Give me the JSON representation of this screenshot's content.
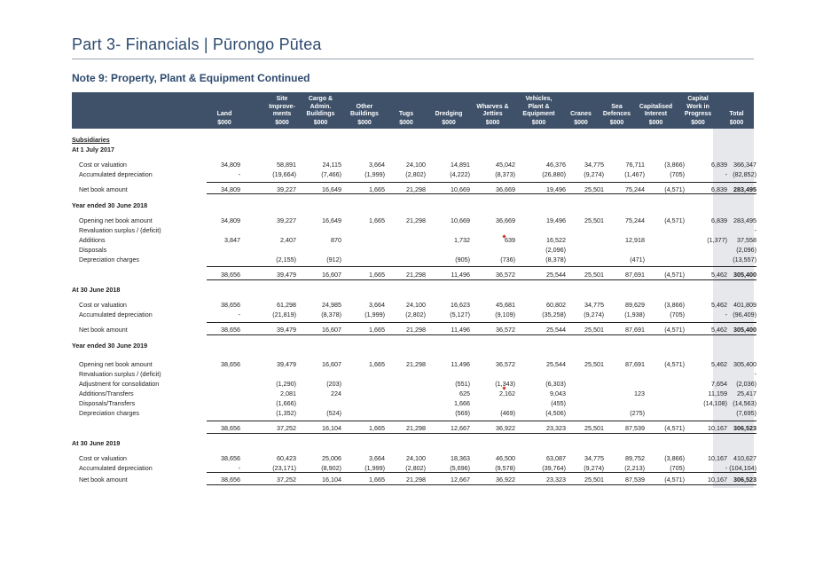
{
  "page_title": "Part 3- Financials | Pūrongo Pūtea",
  "note_title": "Note 9:  Property, Plant & Equipment Continued",
  "columns": [
    {
      "label": "Land",
      "unit": "$000"
    },
    {
      "label": "Site\nImprove-\nments",
      "unit": "$000"
    },
    {
      "label": "Cargo &\nAdmin.\nBuildings",
      "unit": "$000"
    },
    {
      "label": "Other\nBuildings",
      "unit": "$000"
    },
    {
      "label": "Tugs",
      "unit": "$000"
    },
    {
      "label": "Dredging",
      "unit": "$000"
    },
    {
      "label": "Wharves &\nJetties",
      "unit": "$000"
    },
    {
      "label": "Vehicles,\nPlant &\nEquipment",
      "unit": "$000"
    },
    {
      "label": "Cranes",
      "unit": "$000"
    },
    {
      "label": "Sea\nDefences",
      "unit": "$000"
    },
    {
      "label": "Capitalised\nInterest",
      "unit": "$000"
    },
    {
      "label": "Capital\nWork in\nProgress",
      "unit": "$000"
    },
    {
      "label": "Total",
      "unit": "$000"
    }
  ],
  "rows": [
    {
      "type": "section",
      "label": "Subsidiaries",
      "underline": true
    },
    {
      "type": "section",
      "label": "At 1 July 2017"
    },
    {
      "type": "data",
      "label": "Cost or valuation",
      "values": [
        "34,809",
        "58,891",
        "24,115",
        "3,664",
        "24,100",
        "14,891",
        "45,042",
        "46,376",
        "34,775",
        "76,711",
        "(3,866)",
        "6,839",
        "366,347"
      ]
    },
    {
      "type": "data",
      "label": "Accumulated depreciation",
      "values": [
        "-",
        "(19,664)",
        "(7,466)",
        "(1,999)",
        "(2,802)",
        "(4,222)",
        "(8,373)",
        "(26,880)",
        "(9,274)",
        "(1,467)",
        "(705)",
        "-",
        "(82,852)"
      ]
    },
    {
      "type": "data",
      "label": "Net book amount",
      "bold_total": true,
      "values": [
        "34,809",
        "39,227",
        "16,649",
        "1,665",
        "21,298",
        "10,669",
        "36,669",
        "19,496",
        "25,501",
        "75,244",
        "(4,571)",
        "6,839",
        "283,495"
      ]
    },
    {
      "type": "section",
      "label": "Year ended 30 June 2018"
    },
    {
      "type": "data",
      "label": "Opening net book amount",
      "values": [
        "34,809",
        "39,227",
        "16,649",
        "1,665",
        "21,298",
        "10,669",
        "36,669",
        "19,496",
        "25,501",
        "75,244",
        "(4,571)",
        "6,839",
        "283,495"
      ]
    },
    {
      "type": "data",
      "label": "Revaluation surplus / (deficit)",
      "values": [
        "",
        "",
        "",
        "",
        "",
        "",
        "",
        "",
        "",
        "",
        "",
        "",
        "-"
      ]
    },
    {
      "type": "data",
      "label": "Additions",
      "values": [
        "3,847",
        "2,407",
        "870",
        "",
        "",
        "1,732",
        "639",
        "16,522",
        "",
        "12,918",
        "",
        "(1,377)",
        "37,558"
      ]
    },
    {
      "type": "data",
      "label": "Disposals",
      "values": [
        "",
        "",
        "",
        "",
        "",
        "",
        "",
        "(2,096)",
        "",
        "",
        "",
        "",
        "(2,096)"
      ]
    },
    {
      "type": "data",
      "label": "Depreciation charges",
      "values": [
        "",
        "(2,155)",
        "(912)",
        "",
        "",
        "(905)",
        "(736)",
        "(8,378)",
        "",
        "(471)",
        "",
        "",
        "(13,557)"
      ]
    },
    {
      "type": "data",
      "label": "",
      "bold_total": true,
      "values": [
        "38,656",
        "39,479",
        "16,607",
        "1,665",
        "21,298",
        "11,496",
        "36,572",
        "25,544",
        "25,501",
        "87,691",
        "(4,571)",
        "5,462",
        "305,400"
      ]
    },
    {
      "type": "section",
      "label": "At 30 June 2018"
    },
    {
      "type": "data",
      "label": "Cost or valuation",
      "values": [
        "38,656",
        "61,298",
        "24,985",
        "3,664",
        "24,100",
        "16,623",
        "45,681",
        "60,802",
        "34,775",
        "89,629",
        "(3,866)",
        "5,462",
        "401,809"
      ]
    },
    {
      "type": "data",
      "label": "Accumulated depreciation",
      "values": [
        "-",
        "(21,819)",
        "(8,378)",
        "(1,999)",
        "(2,802)",
        "(5,127)",
        "(9,109)",
        "(35,258)",
        "(9,274)",
        "(1,938)",
        "(705)",
        "-",
        "(96,409)"
      ]
    },
    {
      "type": "data",
      "label": "Net book amount",
      "bold_total": true,
      "values": [
        "38,656",
        "39,479",
        "16,607",
        "1,665",
        "21,298",
        "11,496",
        "36,572",
        "25,544",
        "25,501",
        "87,691",
        "(4,571)",
        "5,462",
        "305,400"
      ]
    },
    {
      "type": "section",
      "label": "Year ended 30 June 2019"
    },
    {
      "type": "data",
      "label": "Opening net book amount",
      "values": [
        "38,656",
        "39,479",
        "16,607",
        "1,665",
        "21,298",
        "11,496",
        "36,572",
        "25,544",
        "25,501",
        "87,691",
        "(4,571)",
        "5,462",
        "305,400"
      ]
    },
    {
      "type": "data",
      "label": "Revaluation surplus / (deficit)",
      "values": [
        "",
        "",
        "",
        "",
        "",
        "",
        "",
        "",
        "",
        "",
        "",
        "",
        "-"
      ]
    },
    {
      "type": "data",
      "label": "Adjustment for consolidation",
      "values": [
        "",
        "(1,290)",
        "(203)",
        "",
        "",
        "(551)",
        "(1,343)",
        "(6,303)",
        "",
        "",
        "",
        "7,654",
        "(2,036)"
      ]
    },
    {
      "type": "data",
      "label": "Additions/Transfers",
      "values": [
        "",
        "2,081",
        "224",
        "",
        "",
        "625",
        "2,162",
        "9,043",
        "",
        "123",
        "",
        "11,159",
        "25,417"
      ]
    },
    {
      "type": "data",
      "label": "Disposals/Transfers",
      "values": [
        "",
        "(1,666)",
        "",
        "",
        "",
        "1,666",
        "",
        "(455)",
        "",
        "",
        "",
        "(14,108)",
        "(14,563)"
      ]
    },
    {
      "type": "data",
      "label": "Depreciation charges",
      "values": [
        "",
        "(1,352)",
        "(524)",
        "",
        "",
        "(569)",
        "(469)",
        "(4,506)",
        "",
        "(275)",
        "",
        "",
        "(7,695)"
      ]
    },
    {
      "type": "data",
      "label": "",
      "bold_total": true,
      "values": [
        "38,656",
        "37,252",
        "16,104",
        "1,665",
        "21,298",
        "12,667",
        "36,922",
        "23,323",
        "25,501",
        "87,539",
        "(4,571)",
        "10,167",
        "306,523"
      ]
    },
    {
      "type": "section",
      "label": "At 30 June 2019"
    },
    {
      "type": "data",
      "label": "Cost or valuation",
      "values": [
        "38,656",
        "60,423",
        "25,006",
        "3,664",
        "24,100",
        "18,363",
        "46,500",
        "63,087",
        "34,775",
        "89,752",
        "(3,866)",
        "10,167",
        "410,627"
      ]
    },
    {
      "type": "data",
      "label": "Accumulated depreciation",
      "values": [
        "-",
        "(23,171)",
        "(8,902)",
        "(1,999)",
        "(2,802)",
        "(5,696)",
        "(9,578)",
        "(39,764)",
        "(9,274)",
        "(2,213)",
        "(705)",
        "-",
        "(104,104)"
      ]
    },
    {
      "type": "data",
      "label": "Net book amount",
      "bold_total": true,
      "values": [
        "38,656",
        "37,252",
        "16,104",
        "1,665",
        "21,298",
        "12,667",
        "36,922",
        "23,323",
        "25,501",
        "87,539",
        "(4,571)",
        "10,167",
        "306,523"
      ]
    }
  ]
}
